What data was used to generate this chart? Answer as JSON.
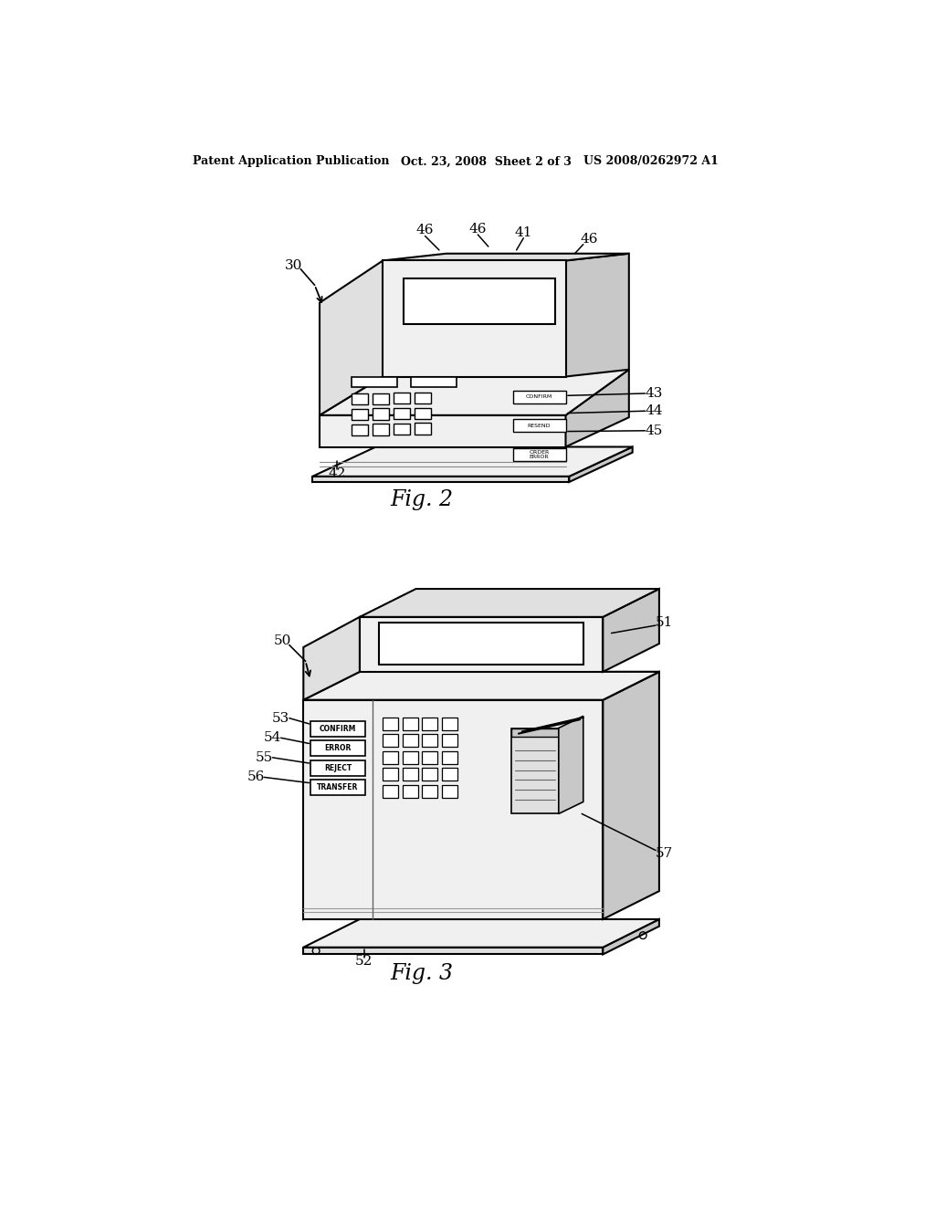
{
  "bg": "#ffffff",
  "lc": "#000000",
  "header_left": "Patent Application Publication",
  "header_mid": "Oct. 23, 2008  Sheet 2 of 3",
  "header_right": "US 2008/0262972 A1",
  "fig2_caption": "Fig. 2",
  "fig3_caption": "Fig. 3",
  "shade_light": "#f0f0f0",
  "shade_mid": "#e0e0e0",
  "shade_dark": "#c8c8c8",
  "shade_side": "#d0d0d0",
  "shade_white": "#ffffff"
}
